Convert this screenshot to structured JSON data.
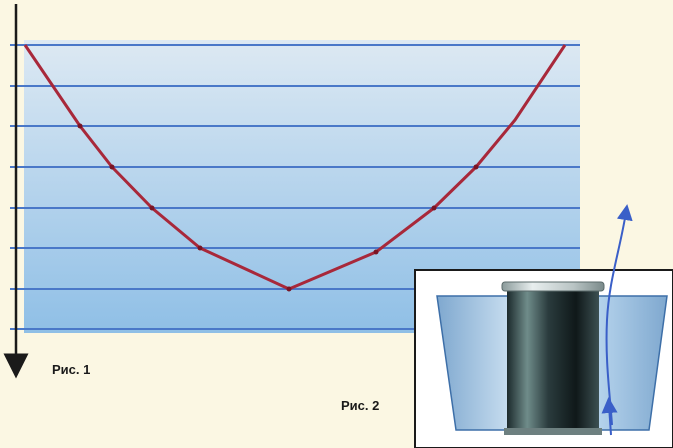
{
  "figure1": {
    "caption": "Рис. 1",
    "colors": {
      "water_top": "#dde9f3",
      "water_bottom": "#8fbfe6",
      "layer_line": "#4a78c8",
      "curve": "#a8283a",
      "axis": "#1a1a1a"
    },
    "layer_count": 8
  },
  "figure2": {
    "caption": "Рис. 2",
    "colors": {
      "frame_border": "#1a1a1a",
      "cup_fill": "#a9cbe8",
      "cylinder_dark": "#1c2a2c",
      "cylinder_highlight": "#6f8c8a",
      "arrow": "#3a5fc8"
    }
  }
}
